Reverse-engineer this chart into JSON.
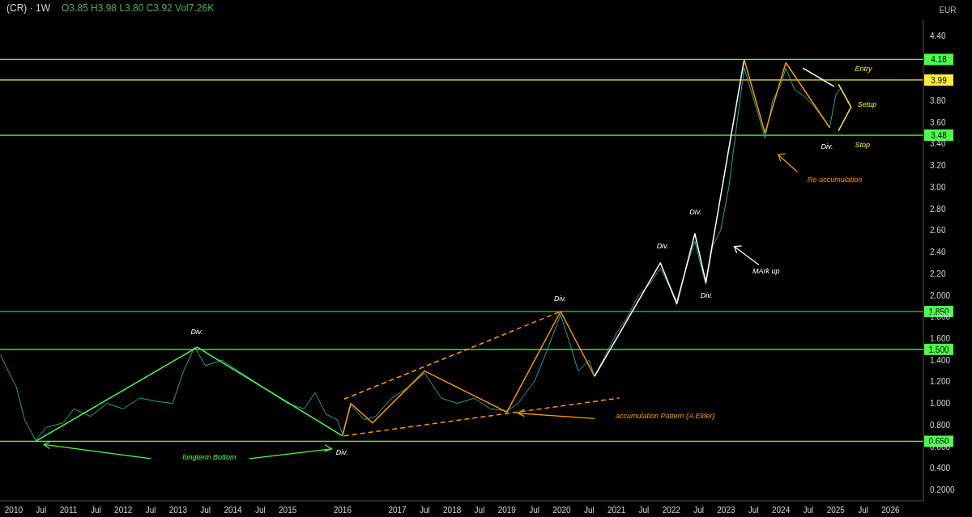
{
  "chart_data": {
    "type": "line",
    "title": "(CR) · 1W",
    "subtitle": "O3.85 H3.98 L3.80 C3.92 Vol7.26K",
    "xlim": [
      2009.75,
      2026.6
    ],
    "xticks": [
      2010,
      {
        "value": 2010.5,
        "label": "Jul"
      },
      2011,
      {
        "value": 2011.5,
        "label": "Jul"
      },
      2012,
      {
        "value": 2012.5,
        "label": "Jul"
      },
      2013,
      {
        "value": 2013.5,
        "label": "Jul"
      },
      2014,
      {
        "value": 2014.5,
        "label": "Jul"
      },
      2015,
      2016,
      2017,
      {
        "value": 2017.5,
        "label": "Jul"
      },
      2018,
      {
        "value": 2018.5,
        "label": "Jul"
      },
      2019,
      {
        "value": 2019.5,
        "label": "Jul"
      },
      2020,
      {
        "value": 2020.5,
        "label": "Jul"
      },
      2021,
      {
        "value": 2021.5,
        "label": "Jul"
      },
      2022,
      {
        "value": 2022.5,
        "label": "Jul"
      },
      2023,
      {
        "value": 2023.5,
        "label": "Jul"
      },
      2024,
      {
        "value": 2024.5,
        "label": "Jul"
      },
      2025,
      {
        "value": 2025.5,
        "label": "Jul"
      },
      2026
    ],
    "ylim": [
      0.1,
      4.55
    ],
    "yticks": [
      {
        "value": 0.2,
        "label": "0.2000"
      },
      {
        "value": 0.4,
        "label": "0.400"
      },
      {
        "value": 0.6,
        "label": "0.600"
      },
      {
        "value": 0.8,
        "label": "0.800"
      },
      {
        "value": 1.0,
        "label": "1.000"
      },
      {
        "value": 1.2,
        "label": "1.200"
      },
      {
        "value": 1.4,
        "label": "1.400"
      },
      {
        "value": 1.6,
        "label": "1.600"
      },
      {
        "value": 1.8,
        "label": "1.800"
      },
      {
        "value": 2.0,
        "label": "2.000"
      },
      {
        "value": 2.2,
        "label": "2.20"
      },
      {
        "value": 2.4,
        "label": "2.40"
      },
      {
        "value": 2.6,
        "label": "2.60"
      },
      {
        "value": 2.8,
        "label": "2.80"
      },
      {
        "value": 3.0,
        "label": "3.00"
      },
      {
        "value": 3.2,
        "label": "3.20"
      },
      {
        "value": 3.4,
        "label": "3.40"
      },
      {
        "value": 3.6,
        "label": "3.60"
      },
      {
        "value": 3.8,
        "label": "3.80"
      },
      {
        "value": 4.4,
        "label": "4.40"
      }
    ],
    "marker": "none",
    "line_style": "solid",
    "series": [
      {
        "color": "#26a69a",
        "x": [
          2009.76,
          2009.9,
          2010.05,
          2010.2,
          2010.4,
          2010.6,
          2010.9,
          2011.1,
          2011.4,
          2011.7,
          2012.0,
          2012.3,
          2012.6,
          2012.9,
          2013.1,
          2013.3,
          2013.5,
          2013.8,
          2014.1,
          2014.4,
          2014.7,
          2015.0,
          2015.3,
          2015.5,
          2015.7,
          2015.9,
          2016.0,
          2016.15,
          2016.4,
          2016.6,
          2016.9,
          2017.2,
          2017.5,
          2017.8,
          2018.1,
          2018.4,
          2018.7,
          2019.0,
          2019.2,
          2019.5,
          2019.7,
          2019.98,
          2020.15,
          2020.3,
          2020.5,
          2020.6,
          2020.8,
          2021.0,
          2021.2,
          2021.4,
          2021.6,
          2021.8,
          2022.0,
          2022.1,
          2022.3,
          2022.43,
          2022.55,
          2022.63,
          2022.75,
          2022.9,
          2023.05,
          2023.2,
          2023.33,
          2023.45,
          2023.6,
          2023.71,
          2023.85,
          2024.0,
          2024.09,
          2024.25,
          2024.4,
          2024.6,
          2024.75,
          2024.89,
          2025.0,
          2025.1
        ],
        "values": [
          1.45,
          1.3,
          1.15,
          0.85,
          0.66,
          0.78,
          0.82,
          0.95,
          0.88,
          1.0,
          0.95,
          1.05,
          1.02,
          1.0,
          1.3,
          1.52,
          1.35,
          1.4,
          1.3,
          1.2,
          1.1,
          1.0,
          0.95,
          1.1,
          0.9,
          0.85,
          0.72,
          0.98,
          0.85,
          0.88,
          1.05,
          1.15,
          1.28,
          1.05,
          1.0,
          1.05,
          0.95,
          0.93,
          1.0,
          1.2,
          1.45,
          1.82,
          1.55,
          1.3,
          1.4,
          1.25,
          1.45,
          1.65,
          1.8,
          2.0,
          2.1,
          2.25,
          2.05,
          1.95,
          2.3,
          2.5,
          2.25,
          2.1,
          2.45,
          2.6,
          3.0,
          3.6,
          4.1,
          3.9,
          3.65,
          3.45,
          3.8,
          3.95,
          4.1,
          3.9,
          3.85,
          3.75,
          3.65,
          3.55,
          3.85,
          3.92
        ]
      },
      {
        "color": "#4cff4c",
        "x": [
          2010.4,
          2013.35,
          2016.0
        ],
        "values": [
          0.65,
          1.52,
          0.7
        ]
      },
      {
        "color": "#ff9800",
        "x": [
          2016.0,
          2016.15,
          2016.55,
          2017.5,
          2019.0,
          2019.98,
          2020.6
        ],
        "values": [
          0.7,
          1.0,
          0.82,
          1.3,
          0.92,
          1.85,
          1.25
        ]
      },
      {
        "color": "#ffffff",
        "x": [
          2020.6,
          2021.8,
          2022.1,
          2022.43,
          2022.63,
          2023.33
        ],
        "values": [
          1.25,
          2.3,
          1.92,
          2.57,
          2.12,
          4.18
        ]
      },
      {
        "color": "#ff9800",
        "x": [
          2023.33,
          2023.71,
          2024.09,
          2024.89
        ],
        "values": [
          4.18,
          3.5,
          4.15,
          3.55
        ]
      },
      {
        "color": "#ffffff",
        "x": [
          2024.4,
          2024.97
        ],
        "values": [
          4.1,
          3.93
        ]
      },
      {
        "color": "#ff9800",
        "line_style": "dashed",
        "x": [
          2016.03,
          2019.98
        ],
        "values": [
          1.04,
          1.85
        ]
      },
      {
        "color": "#ff9800",
        "line_style": "dashed",
        "x": [
          2016.03,
          2021.05
        ],
        "values": [
          0.7,
          1.05
        ]
      }
    ],
    "ref_lines": [
      {
        "axis": "y",
        "value": 4.18,
        "label": "4.18",
        "color": "#4cff4c"
      },
      {
        "axis": "y",
        "value": 3.99,
        "label": "3.99",
        "color": "#ffeb3b"
      },
      {
        "axis": "y",
        "value": 3.48,
        "label": "3.48",
        "color": "#4cff4c"
      },
      {
        "axis": "y",
        "value": 1.85,
        "label": "1.850",
        "color": "#4cff4c"
      },
      {
        "axis": "y",
        "value": 1.5,
        "label": "1.500",
        "color": "#4cff4c"
      },
      {
        "axis": "y",
        "value": 0.65,
        "label": "0.650",
        "color": "#4cff4c"
      }
    ],
    "annotations": [
      "EUR",
      "Div.",
      "Div.",
      "Div.",
      "Div.",
      "Div.",
      "Div.",
      "Div.",
      "longterm Bottom",
      "accumulation Pattern (A.Elder)",
      "MArk up",
      "Re-accumulation",
      "Entry",
      "Setup",
      "Stop"
    ]
  }
}
